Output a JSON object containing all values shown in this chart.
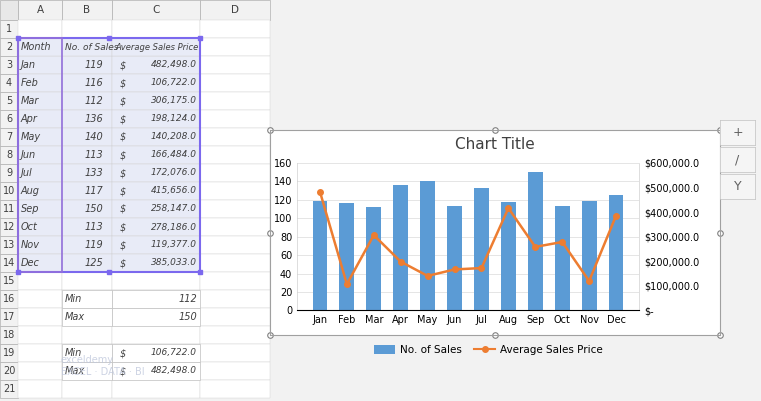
{
  "months": [
    "Jan",
    "Feb",
    "Mar",
    "Apr",
    "May",
    "Jun",
    "Jul",
    "Aug",
    "Sep",
    "Oct",
    "Nov",
    "Dec"
  ],
  "no_of_sales": [
    119,
    116,
    112,
    136,
    140,
    113,
    133,
    117,
    150,
    113,
    119,
    125
  ],
  "avg_sales_price": [
    482498.0,
    106722.0,
    306175.0,
    198124.0,
    140208.0,
    166484.0,
    172076.0,
    415656.0,
    258147.0,
    278186.0,
    119377.0,
    385033.0
  ],
  "bar_color": "#5B9BD5",
  "line_color": "#ED7D31",
  "title": "Chart Title",
  "title_fontsize": 11,
  "left_ylim": [
    0,
    160
  ],
  "right_ylim": [
    0,
    600000
  ],
  "left_yticks": [
    0,
    20,
    40,
    60,
    80,
    100,
    120,
    140,
    160
  ],
  "right_yticks": [
    0,
    100000,
    200000,
    300000,
    400000,
    500000,
    600000
  ],
  "right_yticklabels": [
    "$-",
    "$100,000.0",
    "$200,000.0",
    "$300,000.0",
    "$400,000.0",
    "$500,000.0",
    "$600,000.0"
  ],
  "legend_labels": [
    "No. of Sales",
    "Average Sales Price"
  ],
  "excel_bg": "#F2F2F2",
  "cell_bg": "#FFFFFF",
  "header_bg": "#E8E8F0",
  "selected_bg": "#E8EAF6",
  "grid_line_color": "#D9D9D9",
  "excel_grid_color": "#C8C8C8",
  "bar_width": 0.55,
  "col_header_bg": "#F2F2F2",
  "row_numbers": [
    "1",
    "2",
    "3",
    "4",
    "5",
    "6",
    "7",
    "8",
    "9",
    "10",
    "11",
    "12",
    "13",
    "14",
    "15",
    "16",
    "17",
    "18",
    "19",
    "20",
    "21"
  ],
  "col_letters": [
    "A",
    "B",
    "C",
    "D"
  ],
  "table_months": [
    "Jan",
    "Feb",
    "Mar",
    "Apr",
    "May",
    "Jun",
    "Jul",
    "Aug",
    "Sep",
    "Oct",
    "Nov",
    "Dec"
  ],
  "table_sales": [
    119,
    116,
    112,
    136,
    140,
    113,
    133,
    117,
    150,
    113,
    119,
    125
  ],
  "table_prices": [
    482498.0,
    106722.0,
    306175.0,
    198124.0,
    140208.0,
    166484.0,
    172076.0,
    415656.0,
    258147.0,
    278186.0,
    119377.0,
    385033.0
  ]
}
